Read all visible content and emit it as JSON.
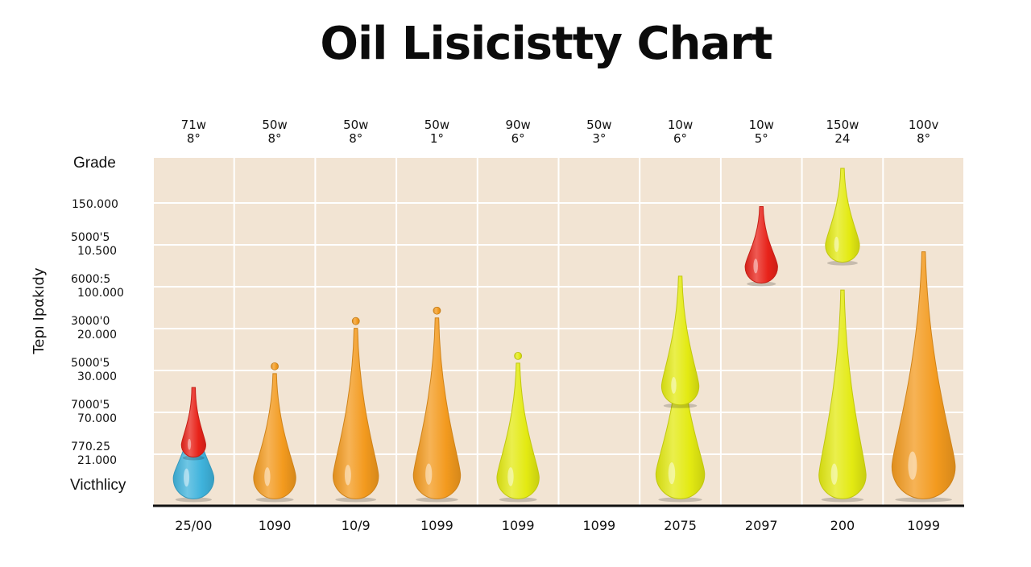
{
  "chart_data": {
    "type": "bar",
    "title": "Oil Lisicistty Chart",
    "ylabel": "Tepı Ipαkıdy",
    "side_headers": {
      "top": "Grade",
      "bottom": "Victhlicy"
    },
    "row_labels": [
      [
        "150.000"
      ],
      [
        "5000'5",
        "10.500"
      ],
      [
        "6000:5",
        "100.000"
      ],
      [
        "3000'0",
        "20.000"
      ],
      [
        "5000'5",
        "30.000"
      ],
      [
        "7000'5",
        "70.000"
      ],
      [
        "770.25",
        "21.000"
      ]
    ],
    "categories": [
      {
        "top": [
          "71w",
          "8°"
        ],
        "bottom": "25/00"
      },
      {
        "top": [
          "50w",
          "8°"
        ],
        "bottom": "1090"
      },
      {
        "top": [
          "50w",
          "8°"
        ],
        "bottom": "10/9"
      },
      {
        "top": [
          "50w",
          "1°"
        ],
        "bottom": "1099"
      },
      {
        "top": [
          "90w",
          "6°"
        ],
        "bottom": "1099"
      },
      {
        "top": [
          "50w",
          "3°"
        ],
        "bottom": "1099"
      },
      {
        "top": [
          "10w",
          "6°"
        ],
        "bottom": "2075"
      },
      {
        "top": [
          "10w",
          "5°"
        ],
        "bottom": "2097"
      },
      {
        "top": [
          "150w",
          "24"
        ],
        "bottom": "200"
      },
      {
        "top": [
          "100v",
          "8°"
        ],
        "bottom": "1099"
      }
    ],
    "drops": [
      {
        "col": 0,
        "color": "blue",
        "top": 0.28,
        "bottom": 0.02,
        "width": 0.5,
        "dot": false
      },
      {
        "col": 0,
        "color": "red",
        "top": 0.34,
        "bottom": 0.14,
        "width": 0.3,
        "dot": false
      },
      {
        "col": 1,
        "color": "orange",
        "top": 0.38,
        "bottom": 0.02,
        "width": 0.52,
        "dot": true
      },
      {
        "col": 2,
        "color": "orange",
        "top": 0.51,
        "bottom": 0.02,
        "width": 0.56,
        "dot": true
      },
      {
        "col": 3,
        "color": "orange",
        "top": 0.54,
        "bottom": 0.02,
        "width": 0.58,
        "dot": true
      },
      {
        "col": 4,
        "color": "yellow",
        "top": 0.41,
        "bottom": 0.02,
        "width": 0.52,
        "dot": true
      },
      {
        "col": 6,
        "color": "yellow",
        "top": 0.47,
        "bottom": 0.02,
        "width": 0.6,
        "dot": false
      },
      {
        "col": 6,
        "color": "yellow",
        "top": 0.66,
        "bottom": 0.29,
        "width": 0.46,
        "dot": false
      },
      {
        "col": 7,
        "color": "red",
        "top": 0.86,
        "bottom": 0.64,
        "width": 0.4,
        "dot": false
      },
      {
        "col": 8,
        "color": "yellow",
        "top": 0.97,
        "bottom": 0.7,
        "width": 0.42,
        "dot": false
      },
      {
        "col": 8,
        "color": "yellow",
        "top": 0.62,
        "bottom": 0.02,
        "width": 0.58,
        "dot": false
      },
      {
        "col": 9,
        "color": "orange",
        "top": 0.73,
        "bottom": 0.02,
        "width": 0.78,
        "dot": false
      }
    ],
    "colors": {
      "plot_background": "#f2e4d3",
      "grid": "#ffffff",
      "axis": "#111111",
      "orange": "#f39a1e",
      "yellow": "#e3ea12",
      "red": "#e8231a",
      "blue": "#3fb3dc"
    }
  }
}
